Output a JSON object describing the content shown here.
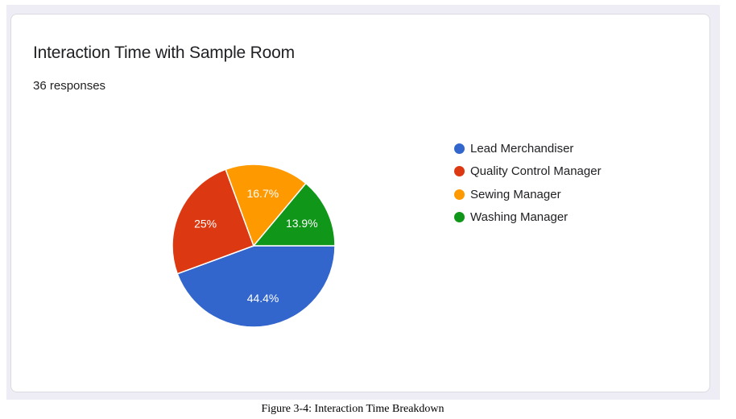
{
  "chart_data": {
    "type": "pie",
    "title": "Interaction Time with Sample Room",
    "subtitle": "36 responses",
    "legend_position": "right",
    "slices": [
      {
        "label": "Lead Merchandiser",
        "value": 44.4,
        "display": "44.4%",
        "color": "#3366cc"
      },
      {
        "label": "Quality Control Manager",
        "value": 25.0,
        "display": "25%",
        "color": "#dc3912"
      },
      {
        "label": "Sewing Manager",
        "value": 16.7,
        "display": "16.7%",
        "color": "#ff9900"
      },
      {
        "label": "Washing Manager",
        "value": 13.9,
        "display": "13.9%",
        "color": "#109618"
      }
    ]
  },
  "caption": "Figure 3-4: Interaction Time Breakdown"
}
